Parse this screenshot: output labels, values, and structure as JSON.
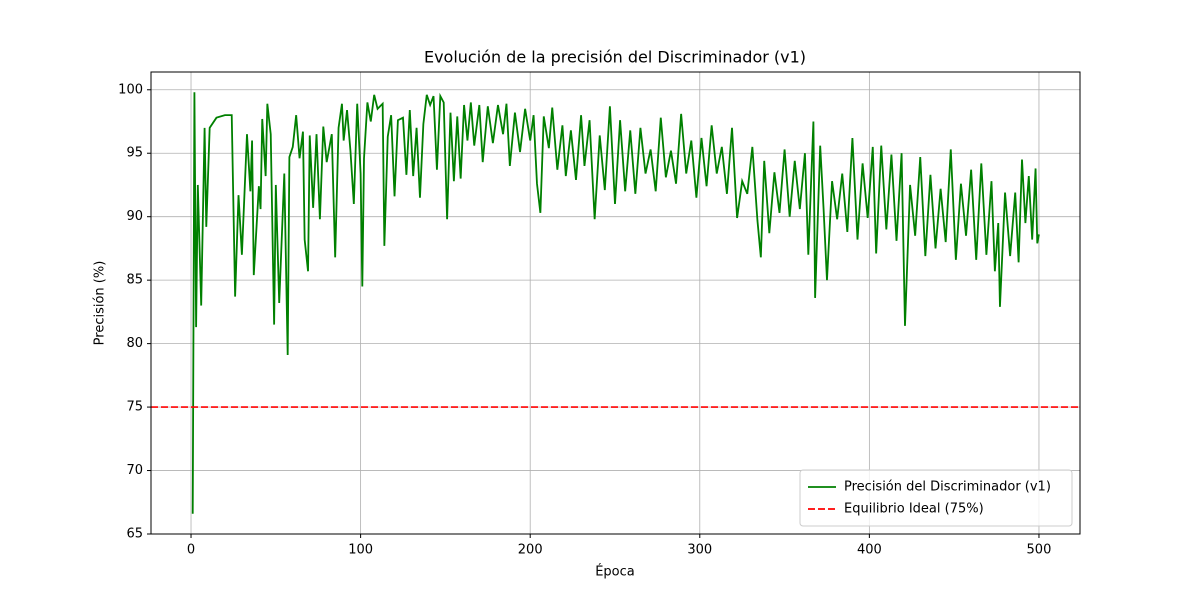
{
  "chart_data": {
    "type": "line",
    "title": "Evolución de la precisión del Discriminador (v1)",
    "x_label": "Época",
    "y_label": "Precisión (%)",
    "xlim": [
      -23.6,
      524.2
    ],
    "ylim": [
      65,
      101.4
    ],
    "xticks": [
      0,
      100,
      200,
      300,
      400,
      500
    ],
    "yticks": [
      65,
      70,
      75,
      80,
      85,
      90,
      95,
      100
    ],
    "grid": true,
    "legend_position": "lower right",
    "x": [
      1,
      2,
      3,
      4,
      6,
      8,
      9,
      11,
      15,
      20,
      24,
      26,
      28,
      30,
      33,
      35,
      36,
      37,
      40,
      41,
      42,
      44,
      45,
      47,
      49,
      50,
      52,
      55,
      57,
      58,
      60,
      62,
      64,
      66,
      67,
      69,
      70,
      72,
      74,
      76,
      78,
      80,
      83,
      85,
      87,
      89,
      90,
      92,
      94,
      96,
      98,
      100,
      101,
      102,
      104,
      106,
      108,
      110,
      113,
      114,
      116,
      118,
      120,
      122,
      125,
      127,
      129,
      131,
      133,
      135,
      137,
      139,
      141,
      143,
      145,
      147,
      149,
      151,
      153,
      155,
      157,
      159,
      161,
      163,
      165,
      167,
      170,
      172,
      175,
      178,
      181,
      184,
      186,
      188,
      191,
      194,
      197,
      200,
      202,
      204,
      206,
      208,
      211,
      213,
      216,
      219,
      221,
      224,
      227,
      230,
      232,
      235,
      238,
      241,
      244,
      247,
      250,
      253,
      256,
      259,
      262,
      265,
      268,
      271,
      274,
      277,
      280,
      283,
      286,
      289,
      292,
      295,
      298,
      301,
      304,
      307,
      310,
      313,
      316,
      319,
      322,
      325,
      328,
      331,
      334,
      336,
      338,
      341,
      344,
      347,
      350,
      353,
      356,
      359,
      362,
      364,
      367,
      368,
      371,
      373,
      375,
      378,
      381,
      384,
      387,
      390,
      393,
      396,
      399,
      402,
      404,
      407,
      410,
      413,
      416,
      419,
      421,
      424,
      427,
      430,
      433,
      436,
      439,
      442,
      445,
      448,
      451,
      454,
      457,
      460,
      463,
      466,
      469,
      472,
      474,
      476,
      477,
      480,
      483,
      486,
      488,
      490,
      492,
      494,
      496,
      498,
      499,
      500
    ],
    "series": [
      {
        "name": "Precisión del Discriminador (v1)",
        "color": "#008000",
        "style": "solid",
        "values": [
          66.6,
          99.8,
          81.3,
          92.5,
          83.0,
          97.0,
          89.2,
          97.0,
          97.8,
          98.0,
          98.0,
          83.7,
          91.7,
          87.0,
          96.5,
          92.0,
          96.0,
          85.4,
          92.4,
          90.6,
          97.7,
          93.2,
          98.9,
          96.5,
          81.5,
          92.5,
          83.2,
          93.4,
          79.1,
          94.7,
          95.5,
          98.0,
          94.6,
          96.7,
          88.2,
          85.7,
          96.4,
          90.7,
          96.5,
          89.8,
          97.1,
          94.3,
          96.5,
          86.8,
          97.0,
          98.9,
          96.0,
          98.4,
          95.2,
          91.0,
          98.9,
          93.4,
          84.5,
          94.6,
          99.0,
          97.5,
          99.6,
          98.5,
          98.9,
          87.7,
          96.3,
          98.0,
          91.6,
          97.6,
          97.8,
          93.3,
          98.4,
          93.2,
          97.0,
          91.5,
          97.3,
          99.6,
          98.8,
          99.5,
          93.7,
          99.5,
          99.0,
          89.8,
          98.2,
          92.8,
          97.9,
          93.0,
          98.8,
          96.0,
          99.0,
          95.6,
          98.8,
          94.3,
          98.7,
          95.8,
          98.8,
          96.5,
          98.9,
          94.0,
          98.2,
          95.1,
          98.5,
          96.0,
          98.0,
          92.6,
          90.3,
          97.9,
          95.4,
          98.6,
          93.7,
          97.2,
          93.2,
          96.8,
          92.9,
          98.0,
          94.0,
          97.6,
          89.8,
          96.4,
          92.1,
          98.7,
          91.0,
          97.6,
          92.0,
          96.8,
          91.8,
          97.0,
          93.4,
          95.3,
          92.0,
          97.8,
          93.1,
          95.2,
          92.6,
          98.1,
          93.4,
          96.0,
          91.5,
          96.2,
          92.4,
          97.2,
          93.4,
          95.5,
          91.8,
          97.0,
          89.9,
          92.8,
          91.8,
          95.5,
          89.7,
          86.8,
          94.4,
          88.7,
          93.5,
          90.3,
          95.3,
          90.0,
          94.4,
          90.6,
          95.0,
          87.0,
          97.5,
          83.6,
          95.6,
          90.6,
          85.0,
          92.8,
          89.8,
          93.4,
          88.8,
          96.2,
          88.2,
          94.2,
          89.9,
          95.5,
          87.1,
          95.6,
          89.0,
          94.9,
          88.1,
          95.0,
          81.4,
          92.5,
          88.5,
          94.7,
          86.9,
          93.3,
          87.5,
          92.2,
          88.0,
          95.3,
          86.6,
          92.6,
          88.5,
          93.7,
          86.6,
          94.2,
          87.0,
          92.8,
          85.7,
          89.5,
          82.9,
          91.9,
          86.9,
          91.9,
          86.4,
          94.5,
          89.5,
          93.2,
          88.2,
          93.8,
          87.9,
          88.6
        ]
      }
    ],
    "reference_line": {
      "name": "Equilibrio Ideal (75%)",
      "value": 75,
      "color": "#ff0000",
      "style": "dashed"
    }
  }
}
